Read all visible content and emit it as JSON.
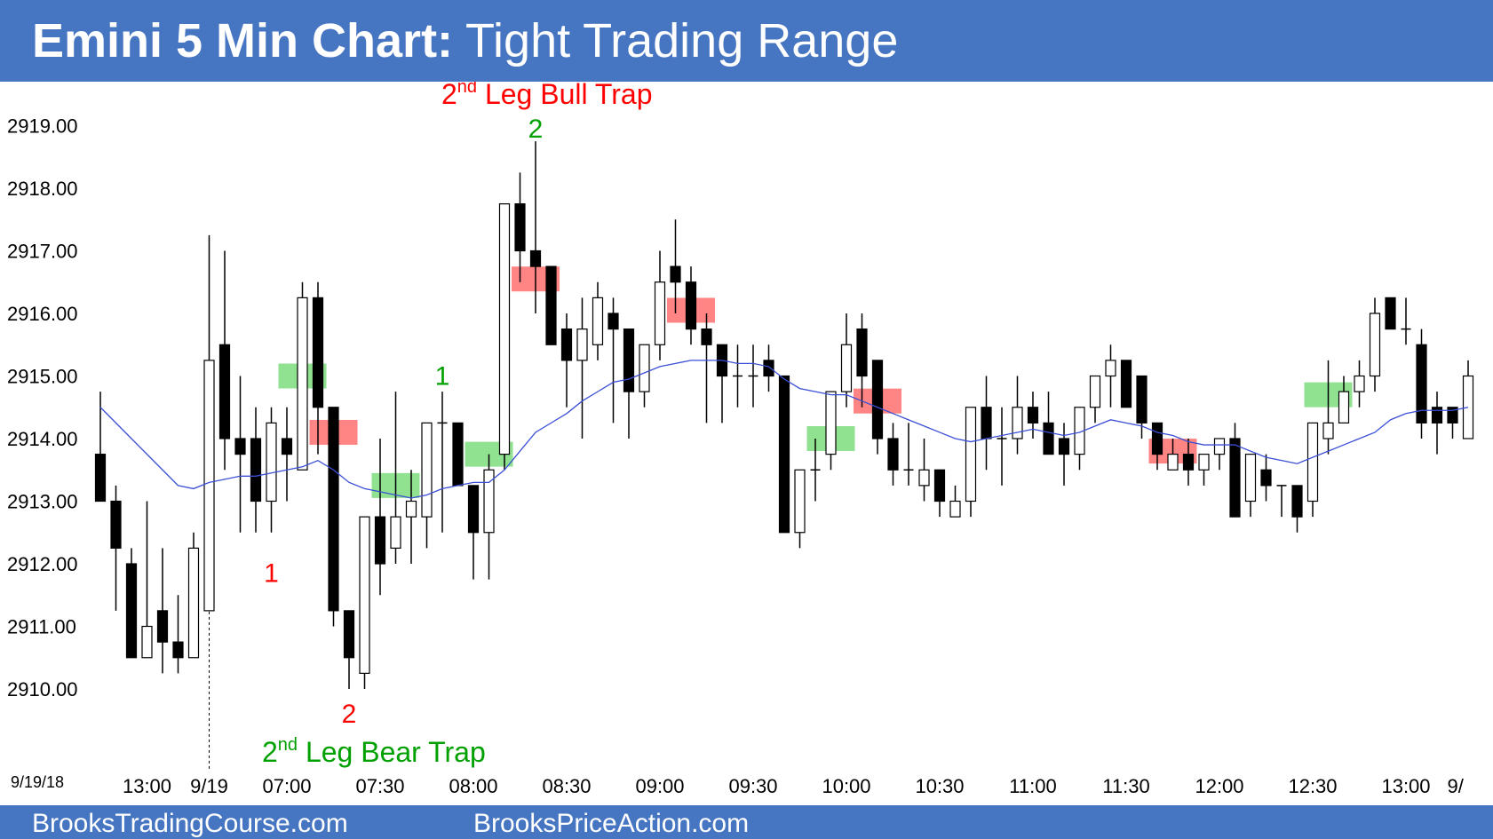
{
  "header": {
    "title_bold": "Emini 5 Min Chart:",
    "title_rest": " Tight Trading Range",
    "bg_color": "#4675C1"
  },
  "footer": {
    "left": "BrooksTradingCourse.com",
    "right": "BrooksPriceAction.com"
  },
  "chart_data": {
    "type": "candlestick",
    "date_label": "9/19/18",
    "y_ticks": [
      "2919.00",
      "2918.00",
      "2917.00",
      "2916.00",
      "2915.00",
      "2914.00",
      "2913.00",
      "2912.00",
      "2911.00",
      "2910.00"
    ],
    "ylim": [
      2909.25,
      2920.2
    ],
    "x_ticks": [
      {
        "label": "13:00",
        "bar": 3
      },
      {
        "label": "9/19",
        "bar": 7
      },
      {
        "label": "07:00",
        "bar": 12
      },
      {
        "label": "07:30",
        "bar": 18
      },
      {
        "label": "08:00",
        "bar": 24
      },
      {
        "label": "08:30",
        "bar": 30
      },
      {
        "label": "09:00",
        "bar": 36
      },
      {
        "label": "09:30",
        "bar": 42
      },
      {
        "label": "10:00",
        "bar": 48
      },
      {
        "label": "10:30",
        "bar": 54
      },
      {
        "label": "11:00",
        "bar": 60
      },
      {
        "label": "11:30",
        "bar": 66
      },
      {
        "label": "12:00",
        "bar": 72
      },
      {
        "label": "12:30",
        "bar": 78
      },
      {
        "label": "13:00",
        "bar": 84
      },
      {
        "label": "9/",
        "bar": 87
      }
    ],
    "session_divider_bar": 7,
    "candles": [
      {
        "o": 2913.75,
        "h": 2914.75,
        "l": 2913.0,
        "c": 2913.0
      },
      {
        "o": 2913.0,
        "h": 2913.25,
        "l": 2911.25,
        "c": 2912.25
      },
      {
        "o": 2912.0,
        "h": 2912.25,
        "l": 2910.5,
        "c": 2910.5
      },
      {
        "o": 2910.5,
        "h": 2913.0,
        "l": 2910.5,
        "c": 2911.0
      },
      {
        "o": 2911.25,
        "h": 2912.25,
        "l": 2910.25,
        "c": 2910.75
      },
      {
        "o": 2910.75,
        "h": 2911.5,
        "l": 2910.25,
        "c": 2910.5
      },
      {
        "o": 2910.5,
        "h": 2912.5,
        "l": 2910.5,
        "c": 2912.25
      },
      {
        "o": 2911.25,
        "h": 2917.25,
        "l": 2911.25,
        "c": 2915.25
      },
      {
        "o": 2915.5,
        "h": 2917.0,
        "l": 2913.5,
        "c": 2914.0
      },
      {
        "o": 2914.0,
        "h": 2915.0,
        "l": 2912.5,
        "c": 2913.75
      },
      {
        "o": 2914.0,
        "h": 2914.5,
        "l": 2912.5,
        "c": 2913.0
      },
      {
        "o": 2913.0,
        "h": 2914.5,
        "l": 2912.5,
        "c": 2914.25
      },
      {
        "o": 2914.0,
        "h": 2914.5,
        "l": 2913.0,
        "c": 2913.75
      },
      {
        "o": 2913.5,
        "h": 2916.5,
        "l": 2913.5,
        "c": 2916.25
      },
      {
        "o": 2916.25,
        "h": 2916.5,
        "l": 2913.75,
        "c": 2914.5
      },
      {
        "o": 2914.5,
        "h": 2914.5,
        "l": 2911.0,
        "c": 2911.25
      },
      {
        "o": 2911.25,
        "h": 2911.25,
        "l": 2910.0,
        "c": 2910.5
      },
      {
        "o": 2910.25,
        "h": 2912.75,
        "l": 2910.0,
        "c": 2912.75
      },
      {
        "o": 2912.75,
        "h": 2914.0,
        "l": 2911.5,
        "c": 2912.0
      },
      {
        "o": 2912.25,
        "h": 2914.75,
        "l": 2912.0,
        "c": 2912.75
      },
      {
        "o": 2912.75,
        "h": 2913.5,
        "l": 2912.0,
        "c": 2913.0
      },
      {
        "o": 2912.75,
        "h": 2914.25,
        "l": 2912.25,
        "c": 2914.25
      },
      {
        "o": 2914.25,
        "h": 2914.75,
        "l": 2912.5,
        "c": 2914.25
      },
      {
        "o": 2914.25,
        "h": 2914.25,
        "l": 2913.25,
        "c": 2913.25
      },
      {
        "o": 2913.25,
        "h": 2913.25,
        "l": 2911.75,
        "c": 2912.5
      },
      {
        "o": 2912.5,
        "h": 2913.75,
        "l": 2911.75,
        "c": 2913.5
      },
      {
        "o": 2913.75,
        "h": 2917.75,
        "l": 2913.5,
        "c": 2917.75
      },
      {
        "o": 2917.75,
        "h": 2918.25,
        "l": 2916.5,
        "c": 2917.0
      },
      {
        "o": 2917.0,
        "h": 2918.75,
        "l": 2916.0,
        "c": 2916.75
      },
      {
        "o": 2916.75,
        "h": 2916.75,
        "l": 2915.5,
        "c": 2915.5
      },
      {
        "o": 2915.75,
        "h": 2916.0,
        "l": 2914.5,
        "c": 2915.25
      },
      {
        "o": 2915.25,
        "h": 2916.25,
        "l": 2914.0,
        "c": 2915.75
      },
      {
        "o": 2915.5,
        "h": 2916.5,
        "l": 2915.25,
        "c": 2916.25
      },
      {
        "o": 2916.0,
        "h": 2916.25,
        "l": 2914.25,
        "c": 2915.75
      },
      {
        "o": 2915.75,
        "h": 2915.75,
        "l": 2914.0,
        "c": 2914.75
      },
      {
        "o": 2914.75,
        "h": 2915.5,
        "l": 2914.5,
        "c": 2915.5
      },
      {
        "o": 2915.5,
        "h": 2917.0,
        "l": 2915.25,
        "c": 2916.5
      },
      {
        "o": 2916.75,
        "h": 2917.5,
        "l": 2916.0,
        "c": 2916.5
      },
      {
        "o": 2916.5,
        "h": 2916.75,
        "l": 2915.5,
        "c": 2915.75
      },
      {
        "o": 2915.75,
        "h": 2916.0,
        "l": 2914.25,
        "c": 2915.5
      },
      {
        "o": 2915.5,
        "h": 2915.5,
        "l": 2914.25,
        "c": 2915.0
      },
      {
        "o": 2915.0,
        "h": 2915.5,
        "l": 2914.5,
        "c": 2915.0
      },
      {
        "o": 2915.0,
        "h": 2915.5,
        "l": 2914.5,
        "c": 2915.0
      },
      {
        "o": 2915.25,
        "h": 2915.5,
        "l": 2914.75,
        "c": 2915.0
      },
      {
        "o": 2915.0,
        "h": 2915.0,
        "l": 2912.5,
        "c": 2912.5
      },
      {
        "o": 2912.5,
        "h": 2913.5,
        "l": 2912.25,
        "c": 2913.5
      },
      {
        "o": 2913.5,
        "h": 2914.0,
        "l": 2913.0,
        "c": 2913.5
      },
      {
        "o": 2913.75,
        "h": 2914.75,
        "l": 2913.5,
        "c": 2914.75
      },
      {
        "o": 2914.75,
        "h": 2916.0,
        "l": 2914.5,
        "c": 2915.5
      },
      {
        "o": 2915.75,
        "h": 2916.0,
        "l": 2914.5,
        "c": 2915.0
      },
      {
        "o": 2915.25,
        "h": 2915.25,
        "l": 2913.75,
        "c": 2914.0
      },
      {
        "o": 2914.0,
        "h": 2914.25,
        "l": 2913.25,
        "c": 2913.5
      },
      {
        "o": 2913.5,
        "h": 2914.25,
        "l": 2913.25,
        "c": 2913.5
      },
      {
        "o": 2913.25,
        "h": 2914.0,
        "l": 2913.0,
        "c": 2913.5
      },
      {
        "o": 2913.5,
        "h": 2913.5,
        "l": 2912.75,
        "c": 2913.0
      },
      {
        "o": 2912.75,
        "h": 2913.25,
        "l": 2912.75,
        "c": 2913.0
      },
      {
        "o": 2913.0,
        "h": 2914.5,
        "l": 2912.75,
        "c": 2914.5
      },
      {
        "o": 2914.5,
        "h": 2915.0,
        "l": 2913.5,
        "c": 2914.0
      },
      {
        "o": 2914.0,
        "h": 2914.5,
        "l": 2913.25,
        "c": 2914.0
      },
      {
        "o": 2914.0,
        "h": 2915.0,
        "l": 2913.75,
        "c": 2914.5
      },
      {
        "o": 2914.5,
        "h": 2914.75,
        "l": 2914.0,
        "c": 2914.25
      },
      {
        "o": 2914.25,
        "h": 2914.75,
        "l": 2913.75,
        "c": 2913.75
      },
      {
        "o": 2914.0,
        "h": 2914.25,
        "l": 2913.25,
        "c": 2913.75
      },
      {
        "o": 2913.75,
        "h": 2914.5,
        "l": 2913.5,
        "c": 2914.5
      },
      {
        "o": 2914.5,
        "h": 2915.0,
        "l": 2914.25,
        "c": 2915.0
      },
      {
        "o": 2915.0,
        "h": 2915.5,
        "l": 2914.5,
        "c": 2915.25
      },
      {
        "o": 2915.25,
        "h": 2915.25,
        "l": 2914.5,
        "c": 2914.5
      },
      {
        "o": 2915.0,
        "h": 2915.0,
        "l": 2914.0,
        "c": 2914.25
      },
      {
        "o": 2914.25,
        "h": 2914.25,
        "l": 2913.5,
        "c": 2913.75
      },
      {
        "o": 2913.5,
        "h": 2914.0,
        "l": 2913.5,
        "c": 2913.75
      },
      {
        "o": 2913.75,
        "h": 2914.0,
        "l": 2913.25,
        "c": 2913.5
      },
      {
        "o": 2913.5,
        "h": 2913.75,
        "l": 2913.25,
        "c": 2913.75
      },
      {
        "o": 2913.75,
        "h": 2914.0,
        "l": 2913.5,
        "c": 2914.0
      },
      {
        "o": 2914.0,
        "h": 2914.25,
        "l": 2912.75,
        "c": 2912.75
      },
      {
        "o": 2913.0,
        "h": 2913.75,
        "l": 2912.75,
        "c": 2913.75
      },
      {
        "o": 2913.5,
        "h": 2913.75,
        "l": 2913.0,
        "c": 2913.25
      },
      {
        "o": 2913.25,
        "h": 2913.25,
        "l": 2912.75,
        "c": 2913.25
      },
      {
        "o": 2913.25,
        "h": 2913.25,
        "l": 2912.5,
        "c": 2912.75
      },
      {
        "o": 2913.0,
        "h": 2914.25,
        "l": 2912.75,
        "c": 2914.25
      },
      {
        "o": 2914.0,
        "h": 2915.25,
        "l": 2913.75,
        "c": 2914.25
      },
      {
        "o": 2914.25,
        "h": 2915.0,
        "l": 2914.25,
        "c": 2914.75
      },
      {
        "o": 2914.75,
        "h": 2915.25,
        "l": 2914.5,
        "c": 2915.0
      },
      {
        "o": 2915.0,
        "h": 2916.25,
        "l": 2914.75,
        "c": 2916.0
      },
      {
        "o": 2916.25,
        "h": 2916.25,
        "l": 2915.75,
        "c": 2915.75
      },
      {
        "o": 2915.75,
        "h": 2916.25,
        "l": 2915.5,
        "c": 2915.75
      },
      {
        "o": 2915.5,
        "h": 2915.75,
        "l": 2914.0,
        "c": 2914.25
      },
      {
        "o": 2914.5,
        "h": 2914.75,
        "l": 2913.75,
        "c": 2914.25
      },
      {
        "o": 2914.5,
        "h": 2914.5,
        "l": 2914.0,
        "c": 2914.25
      },
      {
        "o": 2914.0,
        "h": 2915.25,
        "l": 2914.0,
        "c": 2915.0
      }
    ],
    "ema": [
      2914.5,
      2914.25,
      2914.0,
      2913.75,
      2913.5,
      2913.25,
      2913.2,
      2913.3,
      2913.35,
      2913.4,
      2913.4,
      2913.45,
      2913.5,
      2913.55,
      2913.65,
      2913.5,
      2913.3,
      2913.2,
      2913.15,
      2913.1,
      2913.05,
      2913.1,
      2913.2,
      2913.25,
      2913.3,
      2913.3,
      2913.5,
      2913.8,
      2914.1,
      2914.25,
      2914.4,
      2914.6,
      2914.75,
      2914.9,
      2914.95,
      2915.05,
      2915.15,
      2915.2,
      2915.25,
      2915.25,
      2915.25,
      2915.2,
      2915.2,
      2915.15,
      2914.95,
      2914.8,
      2914.75,
      2914.7,
      2914.7,
      2914.6,
      2914.5,
      2914.4,
      2914.3,
      2914.2,
      2914.1,
      2914.0,
      2913.95,
      2914.0,
      2914.05,
      2914.1,
      2914.15,
      2914.1,
      2914.05,
      2914.1,
      2914.2,
      2914.3,
      2914.25,
      2914.2,
      2914.1,
      2914.05,
      2913.95,
      2913.9,
      2913.9,
      2913.9,
      2913.8,
      2913.7,
      2913.65,
      2913.6,
      2913.7,
      2913.8,
      2913.9,
      2914.0,
      2914.1,
      2914.3,
      2914.4,
      2914.45,
      2914.45,
      2914.45,
      2914.5
    ],
    "ema_color": "#3A4FD6",
    "signal_boxes": [
      {
        "bar": 13,
        "price": 2915.0,
        "color": "green"
      },
      {
        "bar": 15,
        "price": 2914.1,
        "color": "red"
      },
      {
        "bar": 19,
        "price": 2913.25,
        "color": "green"
      },
      {
        "bar": 25,
        "price": 2913.75,
        "color": "green"
      },
      {
        "bar": 28,
        "price": 2916.55,
        "color": "red"
      },
      {
        "bar": 38,
        "price": 2916.05,
        "color": "red"
      },
      {
        "bar": 47,
        "price": 2914.0,
        "color": "green"
      },
      {
        "bar": 50,
        "price": 2914.6,
        "color": "red"
      },
      {
        "bar": 69,
        "price": 2913.8,
        "color": "red"
      },
      {
        "bar": 79,
        "price": 2914.7,
        "color": "green"
      }
    ],
    "annotations": [
      {
        "label": "1",
        "bar": 11,
        "price": 2911.85,
        "color": "#FF0000"
      },
      {
        "label": "2",
        "bar": 16,
        "price": 2909.6,
        "color": "#FF0000"
      },
      {
        "label": "1",
        "bar": 22,
        "price": 2915.0,
        "color": "#00A000"
      },
      {
        "label": "2",
        "bar": 28,
        "price": 2918.95,
        "color": "#00A000"
      }
    ],
    "bull_trap": {
      "pre": "2",
      "sup": "nd",
      "post": " Leg Bull Trap",
      "color": "#FF0000"
    },
    "bear_trap": {
      "pre": "2",
      "sup": "nd",
      "post": " Leg Bear Trap",
      "color": "#00A000"
    },
    "colors": {
      "box_green": "#7CDC7C",
      "box_red": "#FF6E6E",
      "bear_candle": "#000000",
      "bull_candle": "#FFFFFF"
    }
  }
}
